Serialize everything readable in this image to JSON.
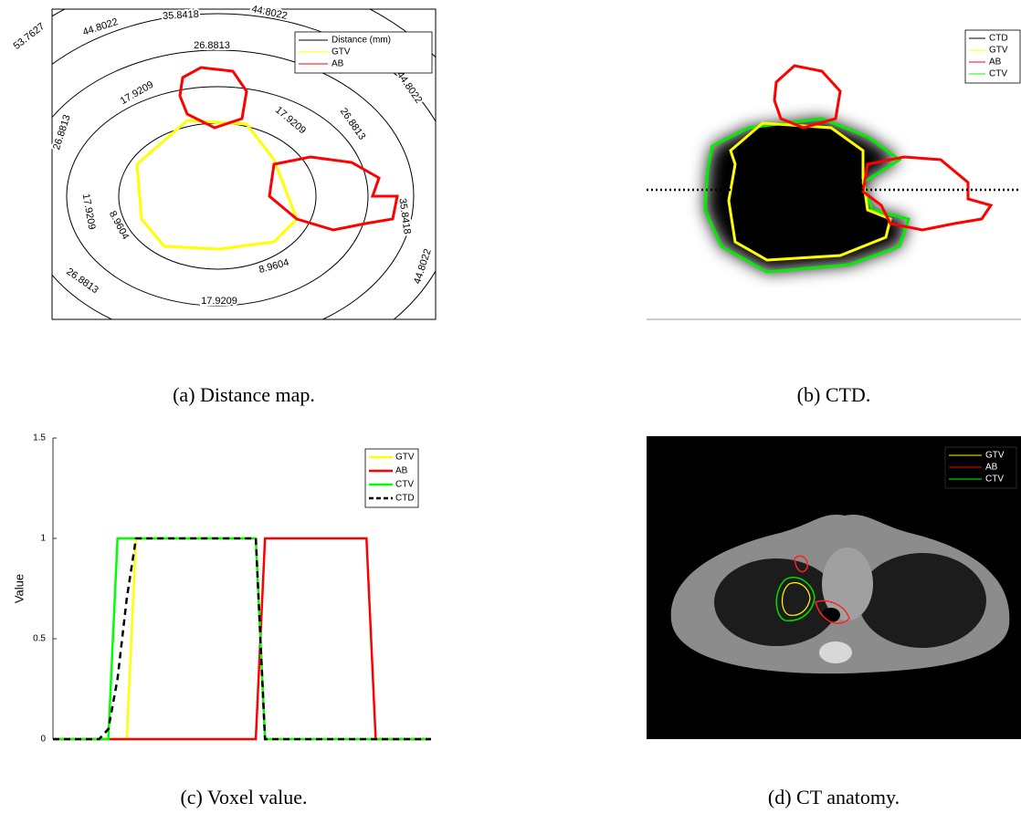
{
  "panels": [
    {
      "caption": "(a)  Distance map.",
      "legend": [
        "Distance (mm)",
        "GTV",
        "AB"
      ],
      "contour_labels": [
        "53.7627",
        "44.8022",
        "35.8418",
        "44.8022",
        "26.8813",
        "17.9209",
        "26.8813",
        "44.8022",
        "17.9209",
        "26.8813",
        "35.8418",
        "17.9209",
        "8.9604",
        "8.9604",
        "26.8813",
        "17.9209",
        "44.8022"
      ]
    },
    {
      "caption": "(b)  CTD.",
      "legend": [
        "CTD",
        "GTV",
        "AB",
        "CTV"
      ]
    },
    {
      "caption": "(c)  Voxel value."
    },
    {
      "caption": "(d)  CT anatomy.",
      "legend": [
        "GTV",
        "AB",
        "CTV"
      ]
    }
  ],
  "chart_data": {
    "type": "line",
    "ylabel": "Value",
    "ylim": [
      0,
      1.5
    ],
    "yticks": [
      0,
      0.5,
      1,
      1.5
    ],
    "legend": "upper right",
    "categories": [
      null,
      null,
      null,
      null,
      null,
      null,
      null,
      null,
      null,
      null,
      null,
      null,
      null,
      null,
      null,
      null,
      null,
      null,
      null,
      null,
      null,
      null,
      null,
      null,
      null,
      null,
      null,
      null,
      null,
      null,
      null,
      null,
      null,
      null,
      null,
      null,
      null,
      null,
      null,
      null,
      null,
      null
    ],
    "series": [
      {
        "name": "GTV",
        "color": "#ffff00",
        "dash": false,
        "values": [
          0,
          0,
          0,
          0,
          0,
          0,
          0,
          0,
          0,
          1,
          1,
          1,
          1,
          1,
          1,
          1,
          1,
          1,
          1,
          1,
          1,
          1,
          1,
          0,
          0,
          0,
          0,
          0,
          0,
          0,
          0,
          0,
          0,
          0,
          0,
          0,
          0,
          0,
          0,
          0,
          0,
          0
        ]
      },
      {
        "name": "AB",
        "color": "#ff0000",
        "dash": false,
        "values": [
          0,
          0,
          0,
          0,
          0,
          0,
          0,
          0,
          0,
          0,
          0,
          0,
          0,
          0,
          0,
          0,
          0,
          0,
          0,
          0,
          0,
          0,
          0,
          1,
          1,
          1,
          1,
          1,
          1,
          1,
          1,
          1,
          1,
          1,
          1,
          0,
          0,
          0,
          0,
          0,
          0,
          0
        ]
      },
      {
        "name": "CTV",
        "color": "#00ff00",
        "dash": false,
        "values": [
          0,
          0,
          0,
          0,
          0,
          0,
          0,
          1,
          1,
          1,
          1,
          1,
          1,
          1,
          1,
          1,
          1,
          1,
          1,
          1,
          1,
          1,
          1,
          0,
          0,
          0,
          0,
          0,
          0,
          0,
          0,
          0,
          0,
          0,
          0,
          0,
          0,
          0,
          0,
          0,
          0,
          0
        ]
      },
      {
        "name": "CTD",
        "color": "#000000",
        "dash": true,
        "values": [
          0,
          0,
          0,
          0,
          0,
          0,
          0.05,
          0.3,
          0.7,
          1,
          1,
          1,
          1,
          1,
          1,
          1,
          1,
          1,
          1,
          1,
          1,
          1,
          1,
          0,
          0,
          0,
          0,
          0,
          0,
          0,
          0,
          0,
          0,
          0,
          0,
          0,
          0,
          0,
          0,
          0,
          0,
          0
        ]
      }
    ]
  }
}
